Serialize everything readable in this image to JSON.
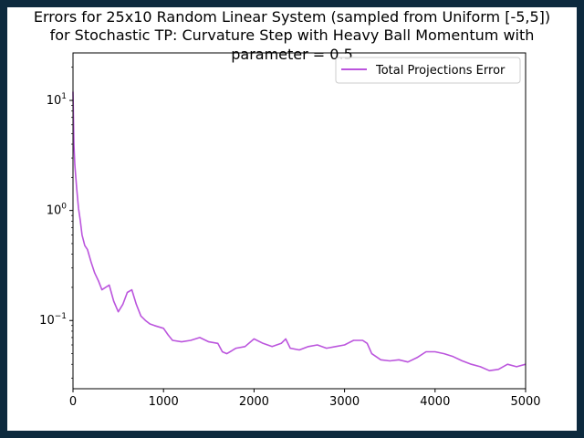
{
  "chart_data": {
    "type": "line",
    "title_lines": [
      "Errors for 25x10 Random Linear System (sampled from Uniform [-5,5])",
      "for Stochastic TP: Curvature Step with Heavy Ball Momentum with",
      "parameter = 0.5"
    ],
    "xlabel": "",
    "ylabel": "",
    "xlim": [
      0,
      5000
    ],
    "ylim": [
      0.024,
      27
    ],
    "yscale": "log",
    "xticks": [
      "0",
      "1000",
      "2000",
      "3000",
      "4000",
      "5000"
    ],
    "yticks": [
      "10^1",
      "10^0",
      "10^-1"
    ],
    "grid": false,
    "legend_position": "top-right",
    "series": [
      {
        "name": "Total Projections Error",
        "color": "#bb55dd",
        "x": [
          0,
          10,
          20,
          40,
          60,
          80,
          100,
          130,
          160,
          200,
          240,
          280,
          320,
          360,
          400,
          450,
          500,
          550,
          600,
          650,
          700,
          750,
          800,
          850,
          900,
          1000,
          1050,
          1100,
          1200,
          1300,
          1400,
          1500,
          1600,
          1650,
          1700,
          1800,
          1900,
          2000,
          2100,
          2200,
          2300,
          2350,
          2400,
          2500,
          2600,
          2700,
          2800,
          2900,
          3000,
          3100,
          3200,
          3250,
          3300,
          3400,
          3500,
          3600,
          3700,
          3800,
          3900,
          4000,
          4100,
          4200,
          4300,
          4400,
          4500,
          4600,
          4700,
          4800,
          4900,
          5000
        ],
        "values": [
          12,
          4.0,
          2.6,
          1.6,
          1.05,
          0.82,
          0.6,
          0.48,
          0.44,
          0.34,
          0.27,
          0.23,
          0.19,
          0.2,
          0.21,
          0.15,
          0.12,
          0.14,
          0.18,
          0.19,
          0.14,
          0.11,
          0.1,
          0.093,
          0.09,
          0.085,
          0.074,
          0.066,
          0.064,
          0.066,
          0.07,
          0.064,
          0.062,
          0.052,
          0.05,
          0.056,
          0.058,
          0.068,
          0.062,
          0.058,
          0.062,
          0.068,
          0.056,
          0.054,
          0.058,
          0.06,
          0.056,
          0.058,
          0.06,
          0.066,
          0.066,
          0.062,
          0.05,
          0.044,
          0.043,
          0.044,
          0.042,
          0.046,
          0.052,
          0.052,
          0.05,
          0.047,
          0.043,
          0.04,
          0.038,
          0.035,
          0.036,
          0.04,
          0.038,
          0.04
        ]
      }
    ]
  }
}
